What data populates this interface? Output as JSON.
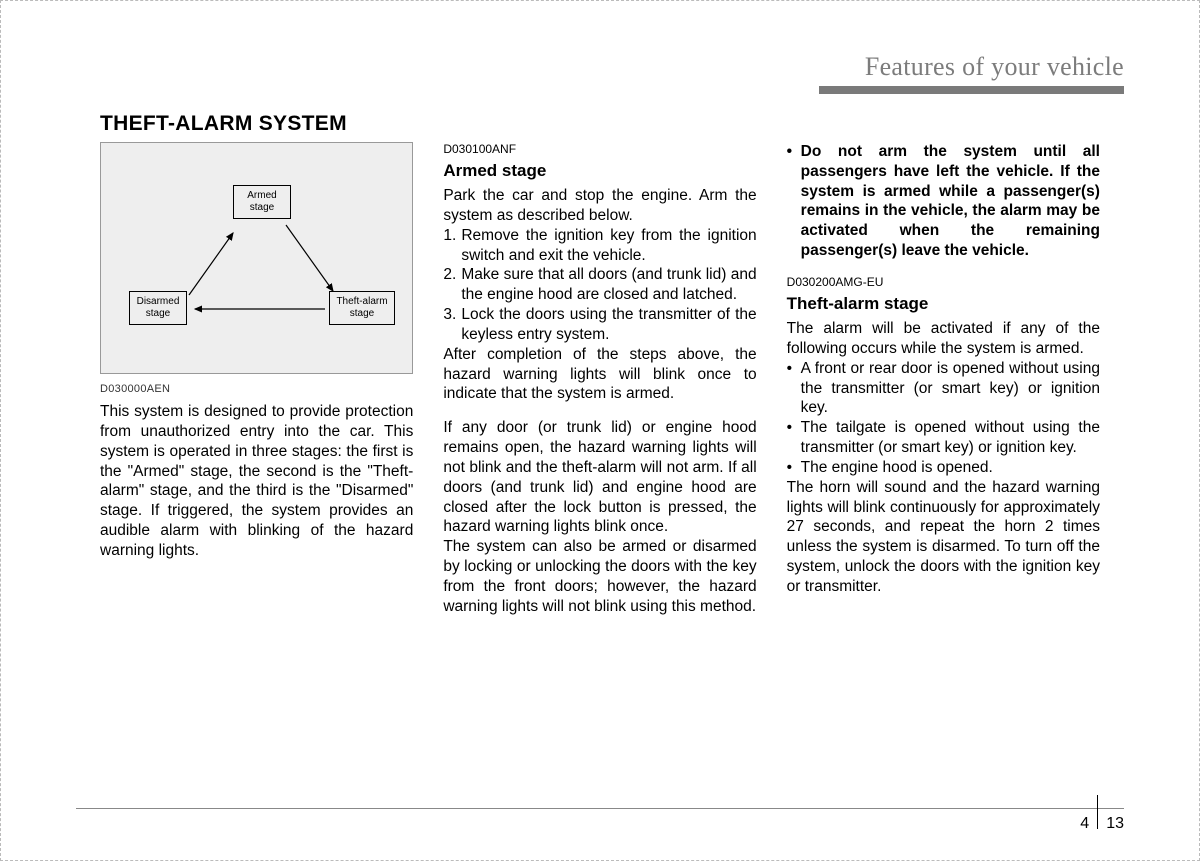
{
  "header": {
    "title": "Features of your vehicle"
  },
  "main_heading": "THEFT-ALARM SYSTEM",
  "diagram": {
    "armed": "Armed\nstage",
    "disarmed": "Disarmed\nstage",
    "theft": "Theft-alarm\nstage",
    "figcode": "D030000AEN"
  },
  "col1": {
    "p1": "This system is designed to provide protection from unauthorized entry into the car. This system is operated in three stages: the first is the \"Armed\" stage, the second is the \"Theft-alarm\" stage, and the third is the \"Disarmed\" stage. If triggered, the system provides an audible alarm with blinking of the hazard warning lights."
  },
  "col2": {
    "code": "D030100ANF",
    "heading": "Armed stage",
    "p1": "Park the car and stop the engine. Arm the system as described below.",
    "l1": "Remove the ignition key from the ignition switch and exit the vehicle.",
    "l2": "Make sure that all doors (and trunk lid) and the engine hood are closed and latched.",
    "l3": "Lock the doors using the transmitter of the keyless entry system.",
    "p2": "After completion of the steps above, the hazard warning lights will blink once to indicate that the system is armed.",
    "p3": "If any door (or trunk lid) or engine hood remains open, the hazard warning lights will not blink and the theft-alarm will not arm. If all doors (and trunk lid) and engine hood are closed after the lock button is pressed, the hazard warning lights blink once.",
    "p4": "The system can also be armed or disarmed by locking or unlocking the doors with the key from the front doors; however, the hazard warning lights will not blink using this method."
  },
  "col3": {
    "b1": "Do not arm the system until all passengers have left the vehicle. If the system is armed while a passenger(s) remains in the vehicle, the alarm may be activated when the remaining passenger(s) leave the vehicle.",
    "code": "D030200AMG-EU",
    "heading": "Theft-alarm stage",
    "p1": "The alarm will be activated if any of the following occurs while the system is armed.",
    "u1": "A front or rear door is opened without using the transmitter (or smart key) or ignition key.",
    "u2": "The tailgate is opened without using the transmitter (or smart key) or ignition key.",
    "u3": "The engine hood is opened.",
    "p2": "The horn will sound and the hazard warning lights will blink continuously for approximately 27 seconds, and repeat the horn 2 times unless the system is disarmed. To turn off the system, unlock the doors with the ignition key or transmitter."
  },
  "footer": {
    "section": "4",
    "page": "13"
  }
}
